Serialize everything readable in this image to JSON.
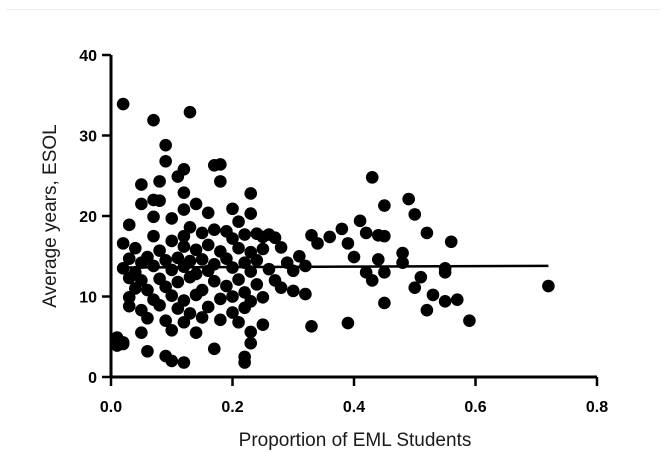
{
  "chart_data": {
    "type": "scatter",
    "title": "",
    "xlabel": "Proportion of EML Students",
    "ylabel": "Average years,  ESOL",
    "xlim": [
      0.0,
      0.8
    ],
    "ylim": [
      0,
      40
    ],
    "x_ticks": [
      "0.0",
      "0.2",
      "0.4",
      "0.6",
      "0.8"
    ],
    "y_ticks": [
      "0",
      "10",
      "20",
      "30",
      "40"
    ],
    "x_tick_values": [
      0.0,
      0.2,
      0.4,
      0.6,
      0.8
    ],
    "y_tick_values": [
      0,
      10,
      20,
      30,
      40
    ],
    "grid": false,
    "legend": "none",
    "marker_color": "#000000",
    "trend_line": {
      "type": "linear",
      "x": [
        0.01,
        0.72
      ],
      "y": [
        13.6,
        13.8
      ]
    },
    "points": [
      [
        0.02,
        33.9
      ],
      [
        0.07,
        31.9
      ],
      [
        0.13,
        32.9
      ],
      [
        0.09,
        28.8
      ],
      [
        0.09,
        26.8
      ],
      [
        0.12,
        25.8
      ],
      [
        0.17,
        26.3
      ],
      [
        0.18,
        26.4
      ],
      [
        0.05,
        23.9
      ],
      [
        0.08,
        24.3
      ],
      [
        0.11,
        24.9
      ],
      [
        0.18,
        24.3
      ],
      [
        0.12,
        22.9
      ],
      [
        0.23,
        22.8
      ],
      [
        0.07,
        22.0
      ],
      [
        0.05,
        21.5
      ],
      [
        0.08,
        21.9
      ],
      [
        0.14,
        21.5
      ],
      [
        0.12,
        20.8
      ],
      [
        0.16,
        20.4
      ],
      [
        0.2,
        20.9
      ],
      [
        0.23,
        20.3
      ],
      [
        0.07,
        19.9
      ],
      [
        0.1,
        19.7
      ],
      [
        0.21,
        19.3
      ],
      [
        0.03,
        18.9
      ],
      [
        0.13,
        18.6
      ],
      [
        0.17,
        18.3
      ],
      [
        0.15,
        17.9
      ],
      [
        0.19,
        18.1
      ],
      [
        0.24,
        17.8
      ],
      [
        0.07,
        17.5
      ],
      [
        0.1,
        16.9
      ],
      [
        0.12,
        17.5
      ],
      [
        0.2,
        17.2
      ],
      [
        0.22,
        17.7
      ],
      [
        0.25,
        17.4
      ],
      [
        0.26,
        17.7
      ],
      [
        0.27,
        17.3
      ],
      [
        0.02,
        16.6
      ],
      [
        0.04,
        16.0
      ],
      [
        0.08,
        15.7
      ],
      [
        0.12,
        16.2
      ],
      [
        0.14,
        15.8
      ],
      [
        0.16,
        16.4
      ],
      [
        0.18,
        15.6
      ],
      [
        0.21,
        16.0
      ],
      [
        0.23,
        15.5
      ],
      [
        0.25,
        15.9
      ],
      [
        0.28,
        16.1
      ],
      [
        0.03,
        14.7
      ],
      [
        0.05,
        14.2
      ],
      [
        0.06,
        14.9
      ],
      [
        0.09,
        14.5
      ],
      [
        0.11,
        14.8
      ],
      [
        0.13,
        14.4
      ],
      [
        0.15,
        14.6
      ],
      [
        0.17,
        14.0
      ],
      [
        0.19,
        14.7
      ],
      [
        0.22,
        14.2
      ],
      [
        0.24,
        14.5
      ],
      [
        0.29,
        14.2
      ],
      [
        0.31,
        15.0
      ],
      [
        0.02,
        13.5
      ],
      [
        0.04,
        13.0
      ],
      [
        0.07,
        13.8
      ],
      [
        0.1,
        13.3
      ],
      [
        0.12,
        13.7
      ],
      [
        0.14,
        12.8
      ],
      [
        0.16,
        13.2
      ],
      [
        0.2,
        13.6
      ],
      [
        0.23,
        13.1
      ],
      [
        0.26,
        13.4
      ],
      [
        0.3,
        13.2
      ],
      [
        0.32,
        13.8
      ],
      [
        0.03,
        12.3
      ],
      [
        0.05,
        12.0
      ],
      [
        0.08,
        12.2
      ],
      [
        0.11,
        11.8
      ],
      [
        0.13,
        12.4
      ],
      [
        0.17,
        11.9
      ],
      [
        0.21,
        12.1
      ],
      [
        0.24,
        11.5
      ],
      [
        0.27,
        12.0
      ],
      [
        0.04,
        11.0
      ],
      [
        0.06,
        10.8
      ],
      [
        0.09,
        11.2
      ],
      [
        0.15,
        10.8
      ],
      [
        0.19,
        11.3
      ],
      [
        0.22,
        10.5
      ],
      [
        0.28,
        11.1
      ],
      [
        0.3,
        10.7
      ],
      [
        0.03,
        9.9
      ],
      [
        0.07,
        9.6
      ],
      [
        0.1,
        10.1
      ],
      [
        0.12,
        9.5
      ],
      [
        0.14,
        10.2
      ],
      [
        0.18,
        9.7
      ],
      [
        0.2,
        10.0
      ],
      [
        0.23,
        9.4
      ],
      [
        0.25,
        9.9
      ],
      [
        0.32,
        10.3
      ],
      [
        0.03,
        8.8
      ],
      [
        0.05,
        8.3
      ],
      [
        0.08,
        8.9
      ],
      [
        0.11,
        8.5
      ],
      [
        0.13,
        7.9
      ],
      [
        0.16,
        8.7
      ],
      [
        0.2,
        8.0
      ],
      [
        0.22,
        8.6
      ],
      [
        0.06,
        7.3
      ],
      [
        0.09,
        7.0
      ],
      [
        0.12,
        6.8
      ],
      [
        0.15,
        7.4
      ],
      [
        0.18,
        7.1
      ],
      [
        0.21,
        6.8
      ],
      [
        0.25,
        6.5
      ],
      [
        0.33,
        6.3
      ],
      [
        0.05,
        5.5
      ],
      [
        0.1,
        5.8
      ],
      [
        0.14,
        5.5
      ],
      [
        0.23,
        5.6
      ],
      [
        0.01,
        4.9
      ],
      [
        0.02,
        4.3
      ],
      [
        0.01,
        3.9
      ],
      [
        0.02,
        4.1
      ],
      [
        0.06,
        3.2
      ],
      [
        0.09,
        2.6
      ],
      [
        0.1,
        2.0
      ],
      [
        0.12,
        1.8
      ],
      [
        0.17,
        3.5
      ],
      [
        0.22,
        2.5
      ],
      [
        0.22,
        1.8
      ],
      [
        0.23,
        4.2
      ],
      [
        0.36,
        17.4
      ],
      [
        0.33,
        17.6
      ],
      [
        0.38,
        18.4
      ],
      [
        0.39,
        16.6
      ],
      [
        0.34,
        16.6
      ],
      [
        0.41,
        19.4
      ],
      [
        0.42,
        17.9
      ],
      [
        0.43,
        24.8
      ],
      [
        0.44,
        17.6
      ],
      [
        0.45,
        21.3
      ],
      [
        0.45,
        17.5
      ],
      [
        0.4,
        14.9
      ],
      [
        0.44,
        14.6
      ],
      [
        0.45,
        13.0
      ],
      [
        0.42,
        13.0
      ],
      [
        0.43,
        12.0
      ],
      [
        0.48,
        14.2
      ],
      [
        0.49,
        22.1
      ],
      [
        0.5,
        20.2
      ],
      [
        0.48,
        15.4
      ],
      [
        0.51,
        12.4
      ],
      [
        0.5,
        11.1
      ],
      [
        0.52,
        17.9
      ],
      [
        0.55,
        13.5
      ],
      [
        0.55,
        13.0
      ],
      [
        0.56,
        16.8
      ],
      [
        0.53,
        10.2
      ],
      [
        0.55,
        9.4
      ],
      [
        0.57,
        9.6
      ],
      [
        0.52,
        8.3
      ],
      [
        0.59,
        7.0
      ],
      [
        0.45,
        9.2
      ],
      [
        0.39,
        6.7
      ],
      [
        0.72,
        11.3
      ]
    ]
  }
}
